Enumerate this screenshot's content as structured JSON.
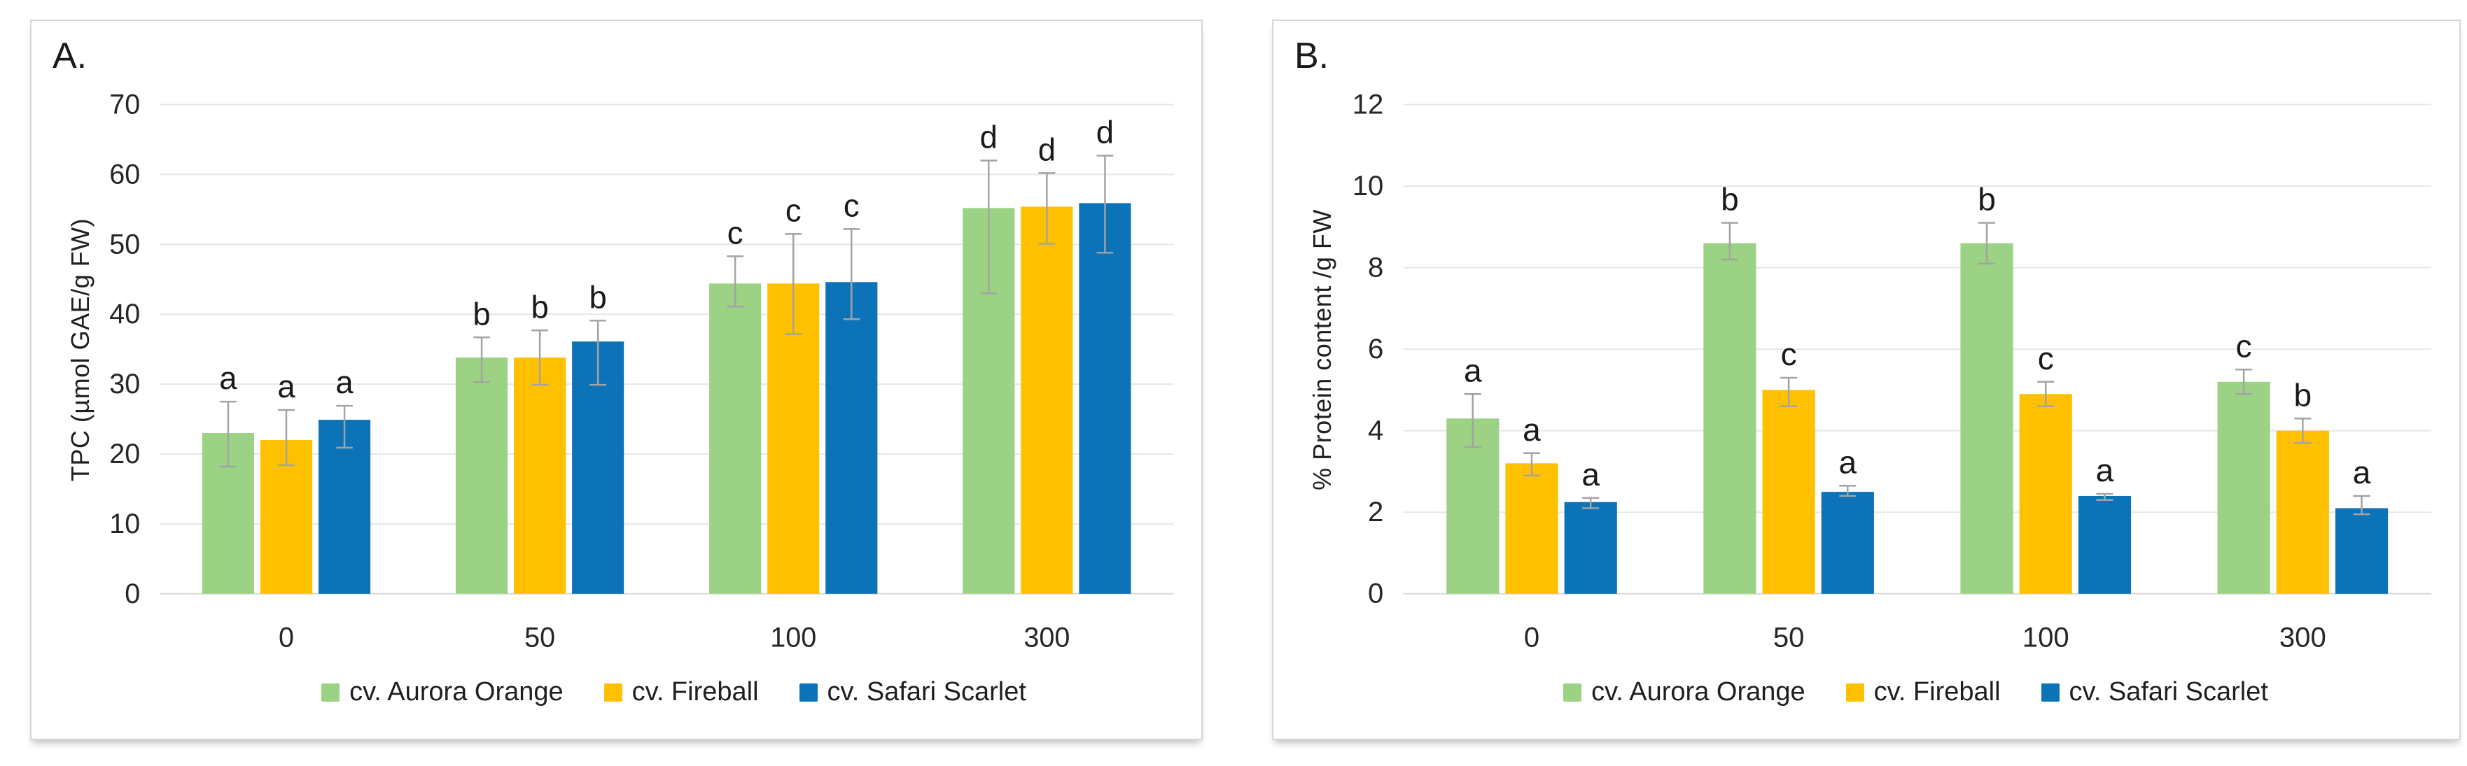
{
  "figure": {
    "description": "Two-panel grouped bar chart figure comparing three marigold cultivars across four treatment doses",
    "x_categories": [
      "0",
      "50",
      "100",
      "300"
    ],
    "colors": {
      "aurora_green": "#9BD283",
      "fireball_yellow": "#FFC000",
      "safari_blue": "#0C73B8",
      "gridline": "#E7E7E7",
      "baseline": "#D9D9D9",
      "error_bar": "#A3A3A3",
      "text": "#262626"
    }
  },
  "chart_data": [
    {
      "panel": "A.",
      "type": "bar",
      "title": "",
      "xlabel": "",
      "ylabel": "TPC (µmol GAE/g FW)",
      "ylim": [
        0,
        70
      ],
      "ytick_step": 10,
      "grid": true,
      "legend_position": "bottom",
      "categories": [
        "0",
        "50",
        "100",
        "300"
      ],
      "series": [
        {
          "name": "cv. Aurora Orange",
          "color": "#9BD283",
          "values": [
            23.0,
            33.8,
            44.4,
            55.2
          ],
          "err_low": [
            18.2,
            30.3,
            41.1,
            43.0
          ],
          "err_high": [
            27.5,
            36.7,
            48.3,
            62.0
          ],
          "letters": [
            "a",
            "b",
            "c",
            "d"
          ]
        },
        {
          "name": "cv. Fireball",
          "color": "#FFC000",
          "values": [
            22.0,
            33.8,
            44.4,
            55.4
          ],
          "err_low": [
            18.4,
            29.9,
            37.2,
            50.1
          ],
          "err_high": [
            26.3,
            37.7,
            51.5,
            60.2
          ],
          "letters": [
            "a",
            "b",
            "c",
            "d"
          ]
        },
        {
          "name": "cv. Safari Scarlet",
          "color": "#0C73B8",
          "values": [
            24.9,
            36.1,
            44.6,
            55.9
          ],
          "err_low": [
            20.9,
            29.9,
            39.3,
            48.8
          ],
          "err_high": [
            26.9,
            39.1,
            52.2,
            62.7
          ],
          "letters": [
            "a",
            "b",
            "c",
            "d"
          ]
        }
      ]
    },
    {
      "panel": "B.",
      "type": "bar",
      "title": "",
      "xlabel": "",
      "ylabel": "% Protein content /g FW",
      "ylim": [
        0,
        12
      ],
      "ytick_step": 2,
      "grid": true,
      "legend_position": "bottom",
      "categories": [
        "0",
        "50",
        "100",
        "300"
      ],
      "series": [
        {
          "name": "cv. Aurora Orange",
          "color": "#9BD283",
          "values": [
            4.3,
            8.6,
            8.6,
            5.2
          ],
          "err_low": [
            3.6,
            8.2,
            8.1,
            4.9
          ],
          "err_high": [
            4.9,
            9.1,
            9.1,
            5.5
          ],
          "letters": [
            "a",
            "b",
            "b",
            "c"
          ]
        },
        {
          "name": "cv. Fireball",
          "color": "#FFC000",
          "values": [
            3.2,
            5.0,
            4.9,
            4.0
          ],
          "err_low": [
            2.9,
            4.6,
            4.6,
            3.7
          ],
          "err_high": [
            3.45,
            5.3,
            5.2,
            4.3
          ],
          "letters": [
            "a",
            "c",
            "c",
            "b"
          ]
        },
        {
          "name": "cv. Safari Scarlet",
          "color": "#0C73B8",
          "values": [
            2.25,
            2.5,
            2.4,
            2.1
          ],
          "err_low": [
            2.1,
            2.4,
            2.3,
            1.95
          ],
          "err_high": [
            2.35,
            2.65,
            2.45,
            2.4
          ],
          "letters": [
            "a",
            "a",
            "a",
            "a"
          ]
        }
      ]
    }
  ]
}
